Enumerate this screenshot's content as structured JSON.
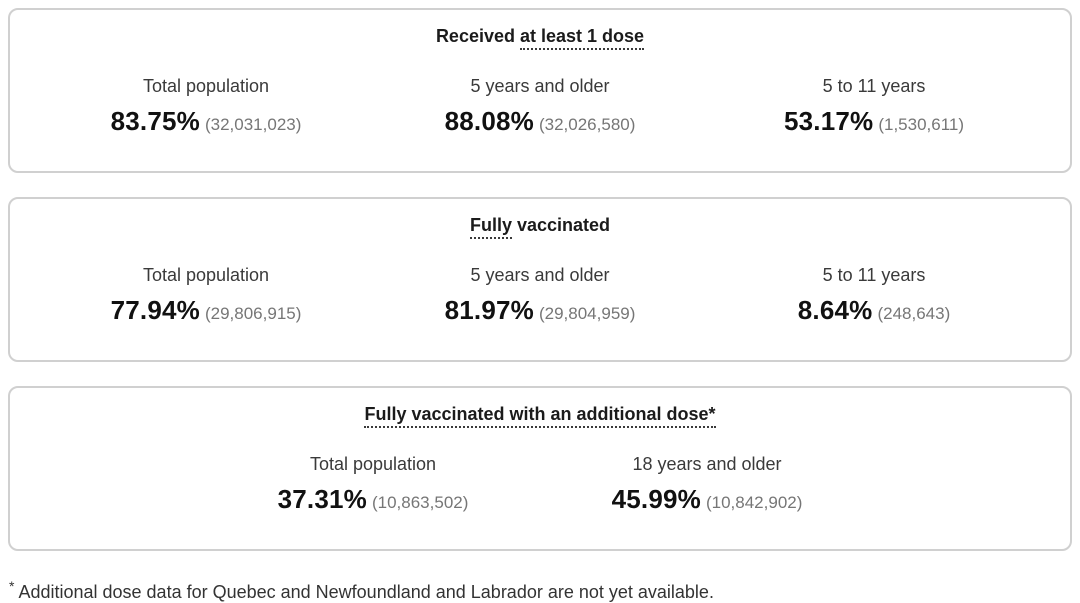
{
  "colors": {
    "card_border": "#d0d0d0",
    "title_text": "#1b1b1b",
    "label_text": "#3a3a3a",
    "percent_text": "#111111",
    "count_text": "#767676",
    "background": "#ffffff"
  },
  "cards": [
    {
      "title_prefix": "Received ",
      "title_term": "at least 1 dose",
      "title_suffix": "",
      "stats": [
        {
          "label": "Total population",
          "percent": "83.75%",
          "count": "(32,031,023)"
        },
        {
          "label": "5 years and older",
          "percent": "88.08%",
          "count": "(32,026,580)"
        },
        {
          "label": "5 to 11 years",
          "percent": "53.17%",
          "count": "(1,530,611)"
        }
      ]
    },
    {
      "title_prefix": "",
      "title_term": "Fully",
      "title_suffix": " vaccinated",
      "stats": [
        {
          "label": "Total population",
          "percent": "77.94%",
          "count": "(29,806,915)"
        },
        {
          "label": "5 years and older",
          "percent": "81.97%",
          "count": "(29,804,959)"
        },
        {
          "label": "5 to 11 years",
          "percent": "8.64%",
          "count": "(248,643)"
        }
      ]
    },
    {
      "title_prefix": "",
      "title_term": "Fully vaccinated with an additional dose*",
      "title_suffix": "",
      "stats": [
        {
          "label": "Total population",
          "percent": "37.31%",
          "count": "(10,863,502)"
        },
        {
          "label": "18 years and older",
          "percent": "45.99%",
          "count": "(10,842,902)"
        }
      ]
    }
  ],
  "footnote": {
    "marker": "*",
    "text": "Additional dose data for Quebec and Newfoundland and Labrador are not yet available."
  }
}
